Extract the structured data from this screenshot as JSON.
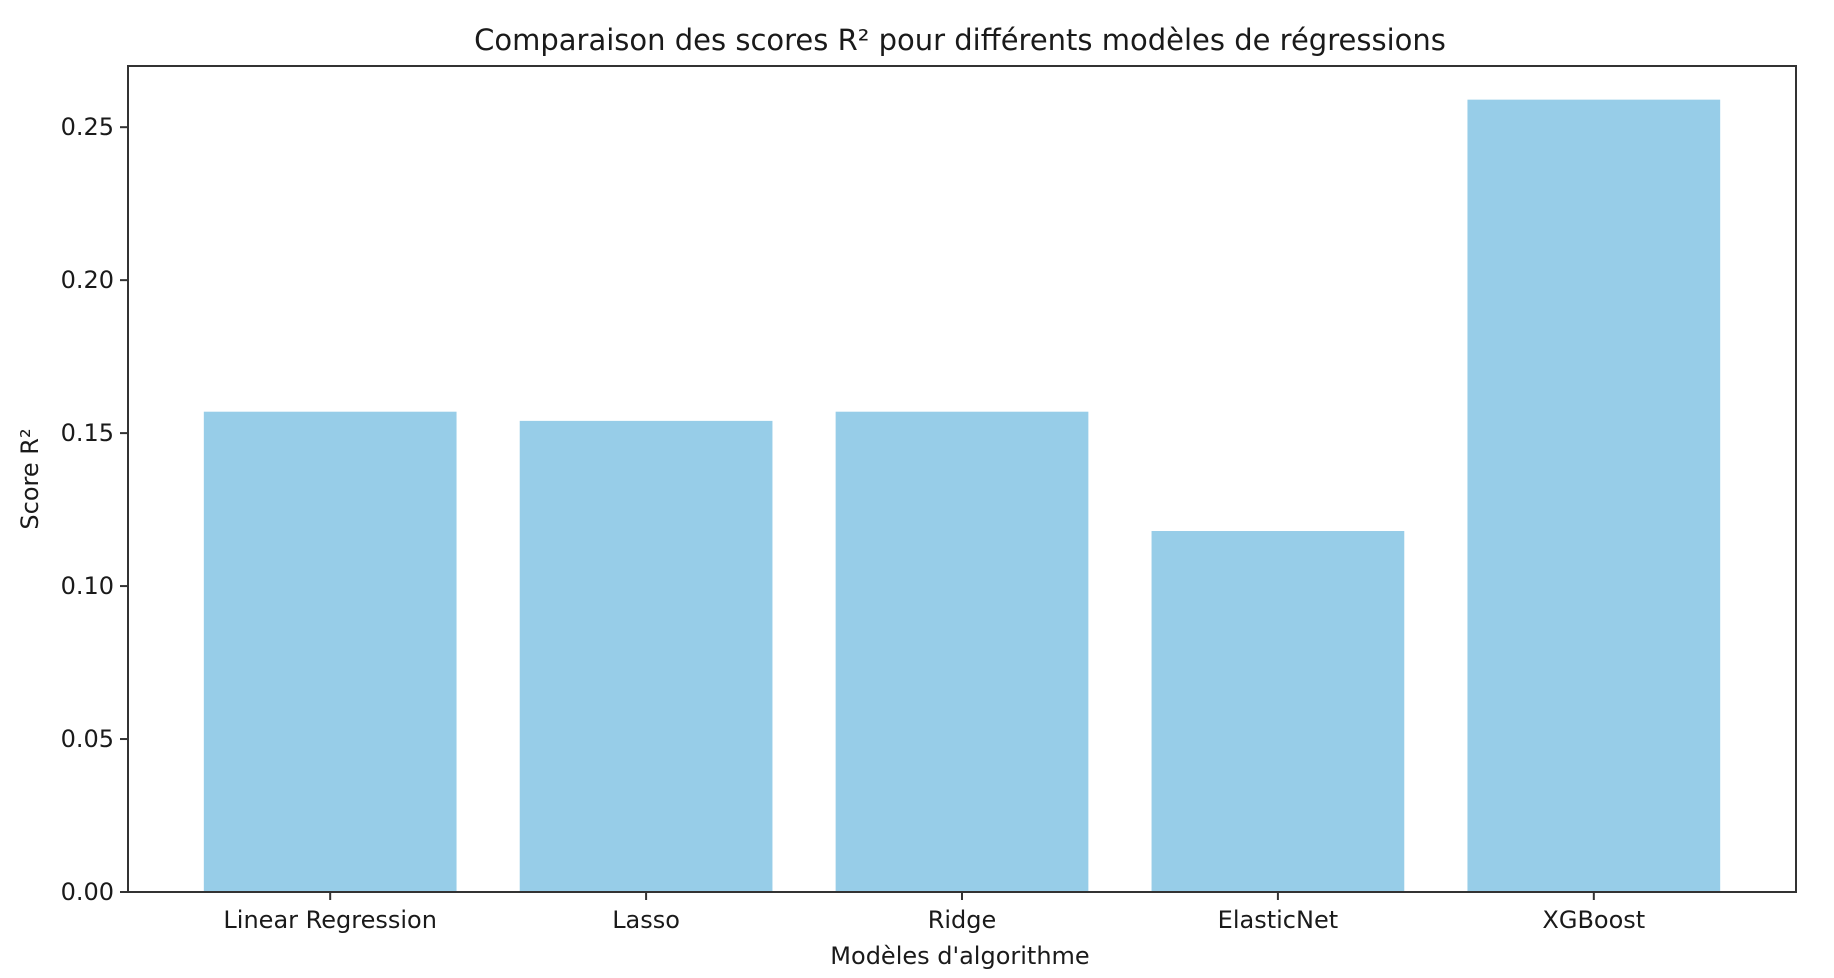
{
  "chart_data": {
    "type": "bar",
    "title": "Comparaison des scores R² pour différents modèles de régressions",
    "xlabel": "Modèles d'algorithme",
    "ylabel": "Score R²",
    "categories": [
      "Linear Regression",
      "Lasso",
      "Ridge",
      "ElasticNet",
      "XGBoost"
    ],
    "values": [
      0.157,
      0.154,
      0.157,
      0.118,
      0.259
    ],
    "ylim": [
      0,
      0.27
    ],
    "yticks": [
      0.0,
      0.05,
      0.1,
      0.15,
      0.2,
      0.25
    ],
    "ytick_labels": [
      "0.00",
      "0.05",
      "0.10",
      "0.15",
      "0.20",
      "0.25"
    ],
    "grid": false,
    "legend": "none",
    "bar_color": "#97cde8",
    "axis_color": "#333333"
  }
}
